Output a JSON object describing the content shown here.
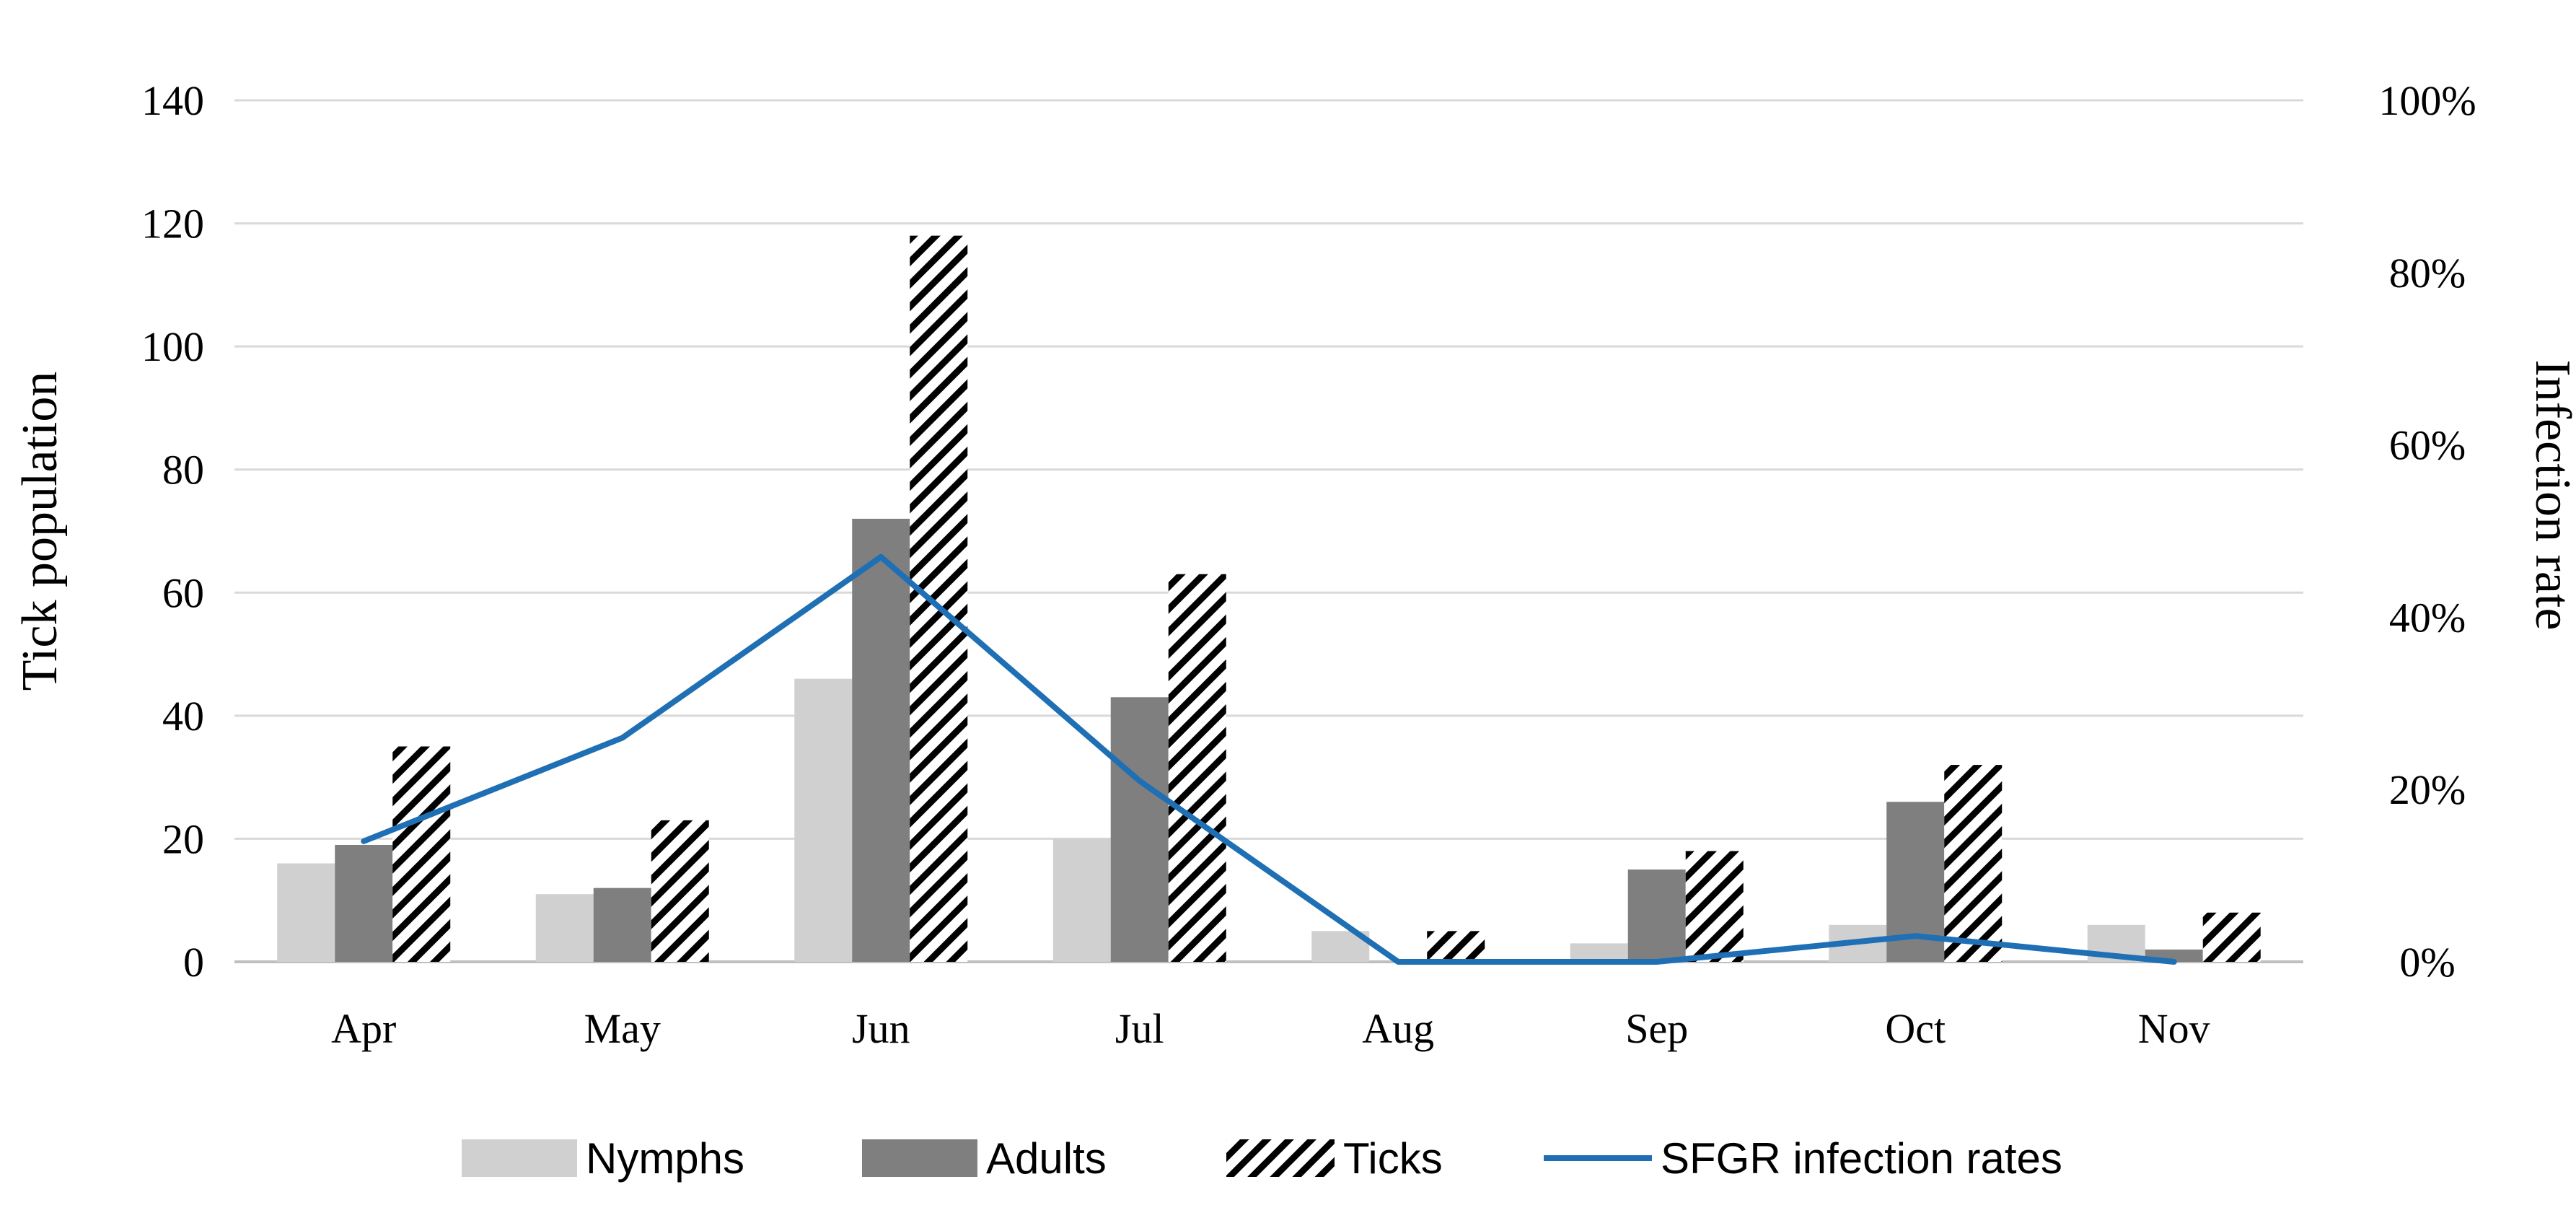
{
  "chart_data": {
    "type": "bar",
    "title": "",
    "categories": [
      "Apr",
      "May",
      "Jun",
      "Jul",
      "Aug",
      "Sep",
      "Oct",
      "Nov"
    ],
    "ylabel": "Tick population",
    "y2label": "Infection rate",
    "ylim": [
      0,
      140
    ],
    "y_ticks": [
      0,
      20,
      40,
      60,
      80,
      100,
      120,
      140
    ],
    "y2lim": [
      0,
      100
    ],
    "y2_ticks": [
      "0%",
      "20%",
      "40%",
      "60%",
      "80%",
      "100%"
    ],
    "grid": true,
    "legend_position": "bottom",
    "series": [
      {
        "name": "Nymphs",
        "type": "bar",
        "color": "#d0d0d0",
        "values": [
          16,
          11,
          46,
          20,
          5,
          3,
          6,
          6
        ]
      },
      {
        "name": "Adults",
        "type": "bar",
        "color": "#7f7f7f",
        "values": [
          19,
          12,
          72,
          43,
          0,
          15,
          26,
          2
        ]
      },
      {
        "name": "Ticks",
        "type": "bar",
        "pattern": "diagonal-hatch",
        "color": "#000000",
        "values": [
          35,
          23,
          118,
          63,
          5,
          18,
          32,
          8
        ]
      },
      {
        "name": "SFGR infection rates",
        "type": "line",
        "axis": "right",
        "unit": "%",
        "color": "#1f6fb5",
        "values": [
          14,
          26,
          47,
          21,
          0,
          0,
          3,
          0
        ]
      }
    ]
  }
}
